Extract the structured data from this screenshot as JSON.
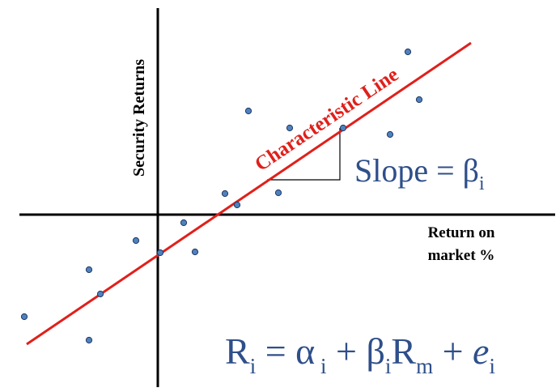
{
  "colors": {
    "background": "#ffffff",
    "axes": "#000000",
    "characteristic_line": "#e0201b",
    "points_fill": "#4f81bd",
    "points_stroke": "#1f3864",
    "formula_text": "#2e4f8a",
    "slope_triangle": "#000000"
  },
  "axes": {
    "y_label": "Security Returns",
    "x_label_line1": "Return on",
    "x_label_line2": "market %"
  },
  "characteristic_line": {
    "label": "Characteristic Line"
  },
  "slope": {
    "prefix": "Slope = ",
    "beta": "β",
    "subscript": "i"
  },
  "equation": {
    "R": "R",
    "R_sub": "i",
    "equals_alpha": " = α",
    "alpha_sub": " i",
    "plus_beta": " + β",
    "beta_sub": "i",
    "Rm": "R",
    "Rm_sub": "m",
    "plus_e": " + ",
    "e": "e",
    "e_sub": "i"
  }
}
